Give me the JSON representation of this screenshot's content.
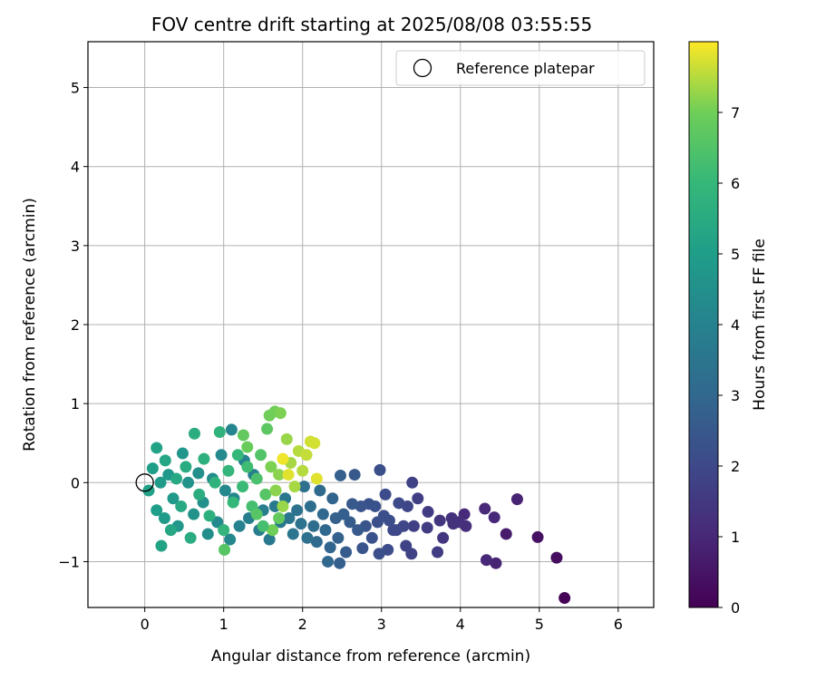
{
  "chart_data": {
    "type": "scatter",
    "title": "FOV centre drift starting at 2025/08/08 03:55:55",
    "xlabel": "Angular distance from reference (arcmin)",
    "ylabel": "Rotation from reference (arcmin)",
    "xlim": [
      -0.72,
      6.45
    ],
    "ylim": [
      -1.58,
      5.58
    ],
    "xticks": [
      0,
      1,
      2,
      3,
      4,
      5,
      6
    ],
    "yticks": [
      -1,
      0,
      1,
      2,
      3,
      4,
      5
    ],
    "grid": true,
    "legend": {
      "placement": "top-right",
      "entries": [
        "Reference platepar"
      ]
    },
    "reference_point": {
      "x": 0,
      "y": 0
    },
    "colorbar": {
      "label": "Hours from first FF file",
      "colormap": "viridis",
      "range": [
        0,
        8
      ],
      "ticks": [
        0,
        1,
        2,
        3,
        4,
        5,
        6,
        7
      ]
    },
    "series": [
      {
        "points": [
          {
            "x": 5.32,
            "y": -1.46,
            "c": 0.05
          },
          {
            "x": 5.22,
            "y": -0.95,
            "c": 0.3
          },
          {
            "x": 4.98,
            "y": -0.69,
            "c": 0.4
          },
          {
            "x": 4.72,
            "y": -0.21,
            "c": 0.9
          },
          {
            "x": 4.58,
            "y": -0.65,
            "c": 0.7
          },
          {
            "x": 4.45,
            "y": -1.02,
            "c": 0.9
          },
          {
            "x": 4.33,
            "y": -0.98,
            "c": 1.0
          },
          {
            "x": 4.31,
            "y": -0.33,
            "c": 1.0
          },
          {
            "x": 4.43,
            "y": -0.44,
            "c": 1.0
          },
          {
            "x": 4.05,
            "y": -0.4,
            "c": 1.1
          },
          {
            "x": 4.07,
            "y": -0.55,
            "c": 1.2
          },
          {
            "x": 3.98,
            "y": -0.5,
            "c": 1.2
          },
          {
            "x": 3.89,
            "y": -0.45,
            "c": 1.3
          },
          {
            "x": 3.91,
            "y": -0.52,
            "c": 1.3
          },
          {
            "x": 3.78,
            "y": -0.7,
            "c": 1.4
          },
          {
            "x": 3.74,
            "y": -0.48,
            "c": 1.4
          },
          {
            "x": 3.71,
            "y": -0.88,
            "c": 1.6
          },
          {
            "x": 3.59,
            "y": -0.37,
            "c": 1.6
          },
          {
            "x": 3.58,
            "y": -0.57,
            "c": 1.6
          },
          {
            "x": 3.46,
            "y": -0.2,
            "c": 1.7
          },
          {
            "x": 3.41,
            "y": -0.55,
            "c": 1.7
          },
          {
            "x": 3.39,
            "y": 0.0,
            "c": 1.8
          },
          {
            "x": 3.38,
            "y": -0.9,
            "c": 1.8
          },
          {
            "x": 3.31,
            "y": -0.8,
            "c": 1.8
          },
          {
            "x": 3.33,
            "y": -0.3,
            "c": 1.9
          },
          {
            "x": 3.28,
            "y": -0.55,
            "c": 1.9
          },
          {
            "x": 3.22,
            "y": -0.26,
            "c": 2.0
          },
          {
            "x": 3.19,
            "y": -0.6,
            "c": 2.0
          },
          {
            "x": 3.15,
            "y": -0.6,
            "c": 2.0
          },
          {
            "x": 3.1,
            "y": -0.48,
            "c": 2.1
          },
          {
            "x": 3.08,
            "y": -0.85,
            "c": 2.1
          },
          {
            "x": 3.05,
            "y": -0.15,
            "c": 2.1
          },
          {
            "x": 3.03,
            "y": -0.42,
            "c": 2.2
          },
          {
            "x": 2.98,
            "y": 0.16,
            "c": 2.2
          },
          {
            "x": 2.97,
            "y": -0.9,
            "c": 2.2
          },
          {
            "x": 2.95,
            "y": -0.5,
            "c": 2.2
          },
          {
            "x": 2.92,
            "y": -0.3,
            "c": 2.3
          },
          {
            "x": 2.88,
            "y": -0.7,
            "c": 2.3
          },
          {
            "x": 2.84,
            "y": -0.27,
            "c": 2.3
          },
          {
            "x": 2.8,
            "y": -0.55,
            "c": 2.4
          },
          {
            "x": 2.76,
            "y": -0.83,
            "c": 2.4
          },
          {
            "x": 2.74,
            "y": -0.3,
            "c": 2.4
          },
          {
            "x": 2.7,
            "y": -0.6,
            "c": 2.5
          },
          {
            "x": 2.66,
            "y": 0.1,
            "c": 2.5
          },
          {
            "x": 2.63,
            "y": -0.27,
            "c": 2.5
          },
          {
            "x": 2.6,
            "y": -0.5,
            "c": 2.6
          },
          {
            "x": 2.55,
            "y": -0.88,
            "c": 2.6
          },
          {
            "x": 2.52,
            "y": -0.4,
            "c": 2.7
          },
          {
            "x": 2.48,
            "y": 0.09,
            "c": 2.7
          },
          {
            "x": 2.47,
            "y": -1.02,
            "c": 2.7
          },
          {
            "x": 2.45,
            "y": -0.7,
            "c": 2.8
          },
          {
            "x": 2.42,
            "y": -0.45,
            "c": 2.8
          },
          {
            "x": 2.38,
            "y": -0.2,
            "c": 2.9
          },
          {
            "x": 2.35,
            "y": -0.82,
            "c": 2.9
          },
          {
            "x": 2.32,
            "y": -1.0,
            "c": 3.0
          },
          {
            "x": 2.29,
            "y": -0.6,
            "c": 3.0
          },
          {
            "x": 2.26,
            "y": -0.4,
            "c": 3.0
          },
          {
            "x": 2.22,
            "y": -0.1,
            "c": 3.1
          },
          {
            "x": 2.18,
            "y": -0.75,
            "c": 3.1
          },
          {
            "x": 2.14,
            "y": -0.55,
            "c": 3.2
          },
          {
            "x": 2.1,
            "y": -0.3,
            "c": 3.2
          },
          {
            "x": 2.06,
            "y": -0.7,
            "c": 3.3
          },
          {
            "x": 2.02,
            "y": -0.05,
            "c": 3.3
          },
          {
            "x": 1.98,
            "y": -0.52,
            "c": 3.4
          },
          {
            "x": 1.93,
            "y": -0.35,
            "c": 3.4
          },
          {
            "x": 1.88,
            "y": -0.65,
            "c": 3.5
          },
          {
            "x": 1.83,
            "y": -0.45,
            "c": 3.5
          },
          {
            "x": 1.78,
            "y": -0.2,
            "c": 3.6
          },
          {
            "x": 1.72,
            "y": -0.5,
            "c": 3.6
          },
          {
            "x": 1.65,
            "y": -0.3,
            "c": 3.7
          },
          {
            "x": 1.58,
            "y": -0.72,
            "c": 3.7
          },
          {
            "x": 1.5,
            "y": -0.35,
            "c": 3.8
          },
          {
            "x": 1.45,
            "y": -0.6,
            "c": 3.8
          },
          {
            "x": 1.38,
            "y": 0.1,
            "c": 3.9
          },
          {
            "x": 1.32,
            "y": -0.45,
            "c": 3.9
          },
          {
            "x": 1.26,
            "y": 0.28,
            "c": 4.0
          },
          {
            "x": 1.2,
            "y": -0.55,
            "c": 4.0
          },
          {
            "x": 1.13,
            "y": -0.2,
            "c": 4.1
          },
          {
            "x": 1.1,
            "y": 0.67,
            "c": 4.1
          },
          {
            "x": 1.08,
            "y": -0.72,
            "c": 4.2
          },
          {
            "x": 1.02,
            "y": -0.1,
            "c": 4.2
          },
          {
            "x": 0.97,
            "y": 0.35,
            "c": 4.3
          },
          {
            "x": 0.92,
            "y": -0.5,
            "c": 4.3
          },
          {
            "x": 0.86,
            "y": 0.05,
            "c": 4.4
          },
          {
            "x": 0.8,
            "y": -0.65,
            "c": 4.4
          },
          {
            "x": 0.74,
            "y": -0.25,
            "c": 4.5
          },
          {
            "x": 0.68,
            "y": 0.12,
            "c": 4.5
          },
          {
            "x": 0.62,
            "y": -0.4,
            "c": 4.6
          },
          {
            "x": 0.55,
            "y": 0.0,
            "c": 4.6
          },
          {
            "x": 0.48,
            "y": 0.37,
            "c": 4.7
          },
          {
            "x": 0.42,
            "y": -0.55,
            "c": 4.7
          },
          {
            "x": 0.36,
            "y": -0.2,
            "c": 4.8
          },
          {
            "x": 0.3,
            "y": 0.1,
            "c": 4.8
          },
          {
            "x": 0.25,
            "y": -0.45,
            "c": 4.9
          },
          {
            "x": 0.2,
            "y": 0.0,
            "c": 4.9
          },
          {
            "x": 0.15,
            "y": -0.35,
            "c": 5.0
          },
          {
            "x": 0.1,
            "y": 0.18,
            "c": 5.0
          },
          {
            "x": 0.05,
            "y": -0.1,
            "c": 5.1
          },
          {
            "x": 0.15,
            "y": 0.44,
            "c": 5.2
          },
          {
            "x": 0.21,
            "y": -0.8,
            "c": 5.2
          },
          {
            "x": 0.26,
            "y": 0.28,
            "c": 5.3
          },
          {
            "x": 0.33,
            "y": -0.6,
            "c": 5.3
          },
          {
            "x": 0.4,
            "y": 0.05,
            "c": 5.4
          },
          {
            "x": 0.46,
            "y": -0.3,
            "c": 5.4
          },
          {
            "x": 0.52,
            "y": 0.2,
            "c": 5.5
          },
          {
            "x": 0.58,
            "y": -0.7,
            "c": 5.5
          },
          {
            "x": 0.63,
            "y": 0.62,
            "c": 5.6
          },
          {
            "x": 0.69,
            "y": -0.15,
            "c": 5.6
          },
          {
            "x": 0.75,
            "y": 0.3,
            "c": 5.7
          },
          {
            "x": 0.82,
            "y": -0.42,
            "c": 5.7
          },
          {
            "x": 0.89,
            "y": 0.0,
            "c": 5.8
          },
          {
            "x": 0.95,
            "y": 0.64,
            "c": 5.8
          },
          {
            "x": 1.0,
            "y": -0.6,
            "c": 5.9
          },
          {
            "x": 1.06,
            "y": 0.15,
            "c": 5.9
          },
          {
            "x": 1.12,
            "y": -0.25,
            "c": 6.0
          },
          {
            "x": 1.18,
            "y": 0.35,
            "c": 6.0
          },
          {
            "x": 1.24,
            "y": -0.05,
            "c": 6.1
          },
          {
            "x": 1.01,
            "y": -0.85,
            "c": 6.6
          },
          {
            "x": 1.3,
            "y": 0.2,
            "c": 6.2
          },
          {
            "x": 1.36,
            "y": -0.3,
            "c": 6.3
          },
          {
            "x": 1.42,
            "y": 0.05,
            "c": 6.4
          },
          {
            "x": 1.47,
            "y": 0.35,
            "c": 6.5
          },
          {
            "x": 1.53,
            "y": -0.15,
            "c": 6.6
          },
          {
            "x": 1.25,
            "y": 0.6,
            "c": 6.8
          },
          {
            "x": 1.3,
            "y": 0.45,
            "c": 6.9
          },
          {
            "x": 1.55,
            "y": 0.68,
            "c": 6.7
          },
          {
            "x": 1.58,
            "y": 0.85,
            "c": 7.0
          },
          {
            "x": 1.65,
            "y": 0.9,
            "c": 7.0
          },
          {
            "x": 1.72,
            "y": 0.88,
            "c": 7.1
          },
          {
            "x": 1.6,
            "y": 0.2,
            "c": 7.1
          },
          {
            "x": 1.66,
            "y": -0.1,
            "c": 7.2
          },
          {
            "x": 1.7,
            "y": 0.1,
            "c": 7.2
          },
          {
            "x": 1.75,
            "y": -0.3,
            "c": 7.3
          },
          {
            "x": 1.8,
            "y": 0.55,
            "c": 7.3
          },
          {
            "x": 1.85,
            "y": 0.25,
            "c": 7.4
          },
          {
            "x": 1.9,
            "y": -0.05,
            "c": 7.4
          },
          {
            "x": 1.95,
            "y": 0.4,
            "c": 7.5
          },
          {
            "x": 2.0,
            "y": 0.15,
            "c": 7.5
          },
          {
            "x": 2.05,
            "y": 0.35,
            "c": 7.6
          },
          {
            "x": 2.1,
            "y": 0.52,
            "c": 7.7
          },
          {
            "x": 2.15,
            "y": 0.5,
            "c": 7.7
          },
          {
            "x": 2.18,
            "y": 0.05,
            "c": 7.8
          },
          {
            "x": 1.82,
            "y": 0.1,
            "c": 7.8
          },
          {
            "x": 1.75,
            "y": 0.3,
            "c": 7.9
          },
          {
            "x": 1.7,
            "y": -0.45,
            "c": 6.8
          },
          {
            "x": 1.62,
            "y": -0.6,
            "c": 7.0
          },
          {
            "x": 1.5,
            "y": -0.55,
            "c": 6.3
          },
          {
            "x": 1.42,
            "y": -0.4,
            "c": 6.6
          }
        ]
      }
    ]
  }
}
